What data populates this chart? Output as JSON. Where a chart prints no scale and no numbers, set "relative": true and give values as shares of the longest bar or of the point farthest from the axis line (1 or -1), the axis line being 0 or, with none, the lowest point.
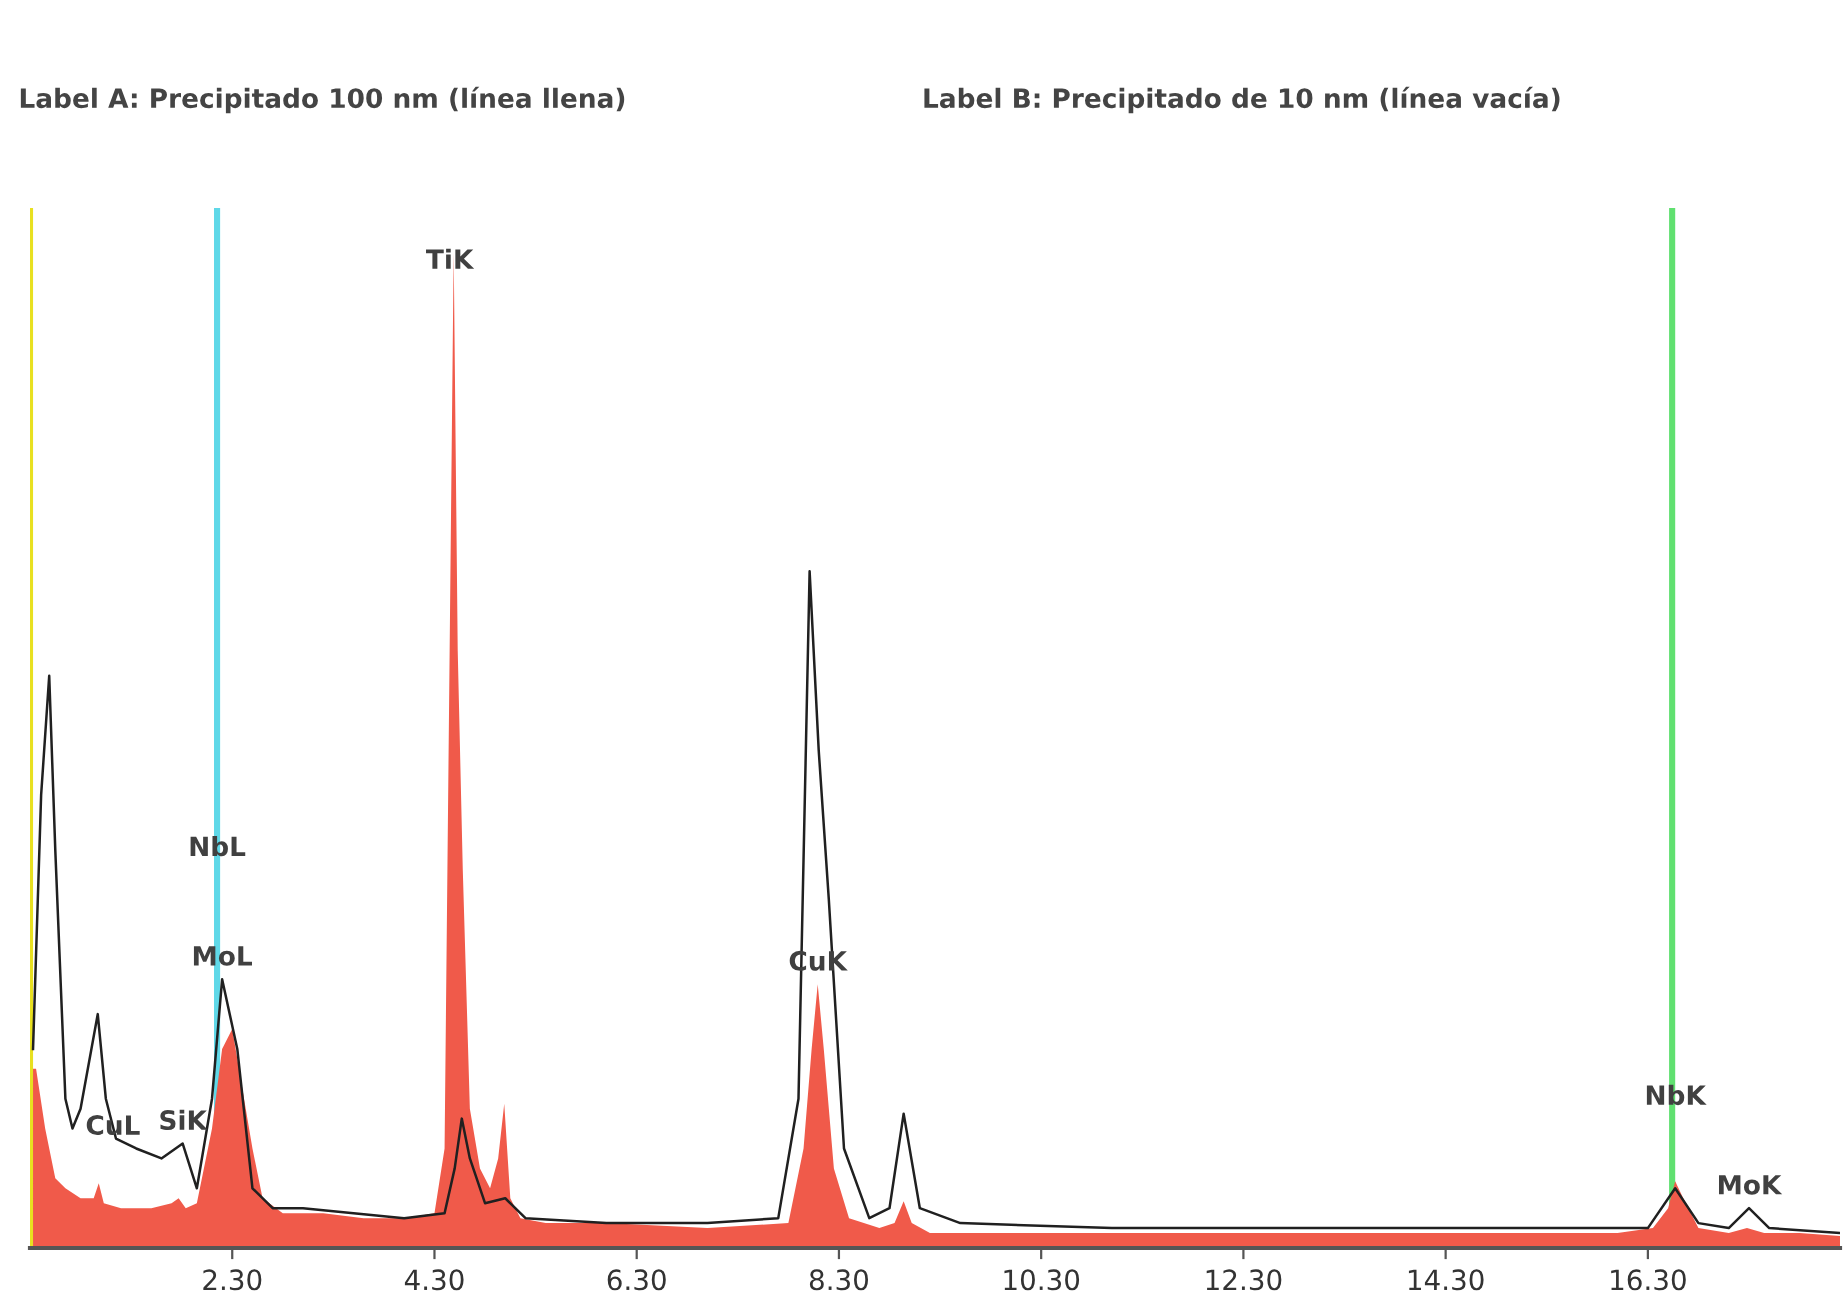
{
  "chart_data": {
    "type": "area",
    "relative": true,
    "grid": false,
    "legend": false,
    "tick_labels": "x",
    "xlim": [
      0.3,
      18.2
    ],
    "xticks": [
      {
        "value": 2.3,
        "label": "2.30"
      },
      {
        "value": 4.3,
        "label": "4.30"
      },
      {
        "value": 6.3,
        "label": "6.30"
      },
      {
        "value": 8.3,
        "label": "8.30"
      },
      {
        "value": 10.3,
        "label": "10.30"
      },
      {
        "value": 12.3,
        "label": "12.30"
      },
      {
        "value": 14.3,
        "label": "14.30"
      },
      {
        "value": 16.3,
        "label": "16.30"
      }
    ],
    "series": [
      {
        "color": "#f05a4a",
        "x": [
          0.33,
          0.36,
          0.45,
          0.55,
          0.65,
          0.8,
          0.93,
          0.98,
          1.03,
          1.2,
          1.5,
          1.7,
          1.77,
          1.84,
          1.95,
          2.1,
          2.2,
          2.3,
          2.4,
          2.5,
          2.6,
          2.8,
          3.2,
          3.6,
          4.0,
          4.3,
          4.4,
          4.45,
          4.49,
          4.53,
          4.58,
          4.65,
          4.75,
          4.85,
          4.93,
          4.99,
          5.05,
          5.15,
          5.4,
          6.0,
          7.0,
          7.8,
          7.95,
          8.03,
          8.09,
          8.15,
          8.25,
          8.4,
          8.7,
          8.85,
          8.94,
          9.02,
          9.2,
          10,
          11,
          12,
          13,
          14,
          15,
          16,
          16.35,
          16.5,
          16.57,
          16.65,
          16.8,
          17.1,
          17.28,
          17.45,
          17.8,
          18.2
        ],
        "values": [
          0.18,
          0.18,
          0.12,
          0.07,
          0.06,
          0.05,
          0.05,
          0.065,
          0.045,
          0.04,
          0.04,
          0.045,
          0.05,
          0.04,
          0.045,
          0.12,
          0.2,
          0.22,
          0.16,
          0.1,
          0.05,
          0.035,
          0.035,
          0.03,
          0.03,
          0.035,
          0.1,
          0.6,
          1.0,
          0.6,
          0.38,
          0.14,
          0.08,
          0.06,
          0.09,
          0.145,
          0.05,
          0.03,
          0.025,
          0.025,
          0.02,
          0.025,
          0.1,
          0.2,
          0.265,
          0.2,
          0.08,
          0.03,
          0.02,
          0.025,
          0.047,
          0.025,
          0.015,
          0.015,
          0.015,
          0.015,
          0.015,
          0.015,
          0.015,
          0.015,
          0.02,
          0.04,
          0.067,
          0.05,
          0.02,
          0.015,
          0.02,
          0.015,
          0.015,
          0.012
        ]
      },
      {
        "type": "line",
        "color": "#202020",
        "x": [
          0.33,
          0.41,
          0.49,
          0.55,
          0.65,
          0.72,
          0.8,
          0.97,
          1.05,
          1.15,
          1.35,
          1.6,
          1.81,
          1.95,
          2.1,
          2.2,
          2.35,
          2.5,
          2.7,
          3.0,
          3.5,
          4.0,
          4.4,
          4.5,
          4.57,
          4.65,
          4.8,
          5.0,
          5.2,
          6.0,
          7.0,
          7.7,
          7.9,
          8.01,
          8.1,
          8.2,
          8.35,
          8.6,
          8.8,
          8.94,
          9.1,
          9.5,
          11,
          13,
          15,
          16.3,
          16.57,
          16.8,
          17.1,
          17.3,
          17.5,
          18.2
        ],
        "values": [
          0.2,
          0.455,
          0.575,
          0.4,
          0.15,
          0.12,
          0.14,
          0.235,
          0.15,
          0.11,
          0.1,
          0.09,
          0.105,
          0.06,
          0.15,
          0.27,
          0.2,
          0.06,
          0.04,
          0.04,
          0.035,
          0.03,
          0.035,
          0.08,
          0.13,
          0.09,
          0.045,
          0.05,
          0.03,
          0.025,
          0.025,
          0.03,
          0.15,
          0.68,
          0.5,
          0.35,
          0.1,
          0.03,
          0.04,
          0.135,
          0.04,
          0.025,
          0.02,
          0.02,
          0.02,
          0.02,
          0.06,
          0.025,
          0.02,
          0.04,
          0.02,
          0.015
        ]
      }
    ],
    "ref_lines": [
      {
        "axis": "x",
        "value": 0.3,
        "color": "#e8e020"
      },
      {
        "axis": "x",
        "value": 2.15,
        "color": "#5fd8e8"
      },
      {
        "axis": "x",
        "value": 16.54,
        "color": "#60e070"
      }
    ],
    "annotations": [
      "Label A: Precipitado 100 nm (línea llena)",
      "Label B: Precipitado de 10 nm (línea vacía)",
      {
        "text": "TiK",
        "x": 4.45,
        "y": 0.97
      },
      {
        "text": "NbL",
        "x": 2.15,
        "y": 0.38
      },
      {
        "text": "MoL",
        "x": 2.2,
        "y": 0.27
      },
      {
        "text": "SiK",
        "x": 1.81,
        "y": 0.105
      },
      {
        "text": "CuL",
        "x": 1.12,
        "y": 0.1
      },
      {
        "text": "CuK",
        "x": 8.09,
        "y": 0.265
      },
      {
        "text": "NbK",
        "x": 16.57,
        "y": 0.13
      },
      {
        "text": "MoK",
        "x": 17.3,
        "y": 0.04
      }
    ]
  }
}
